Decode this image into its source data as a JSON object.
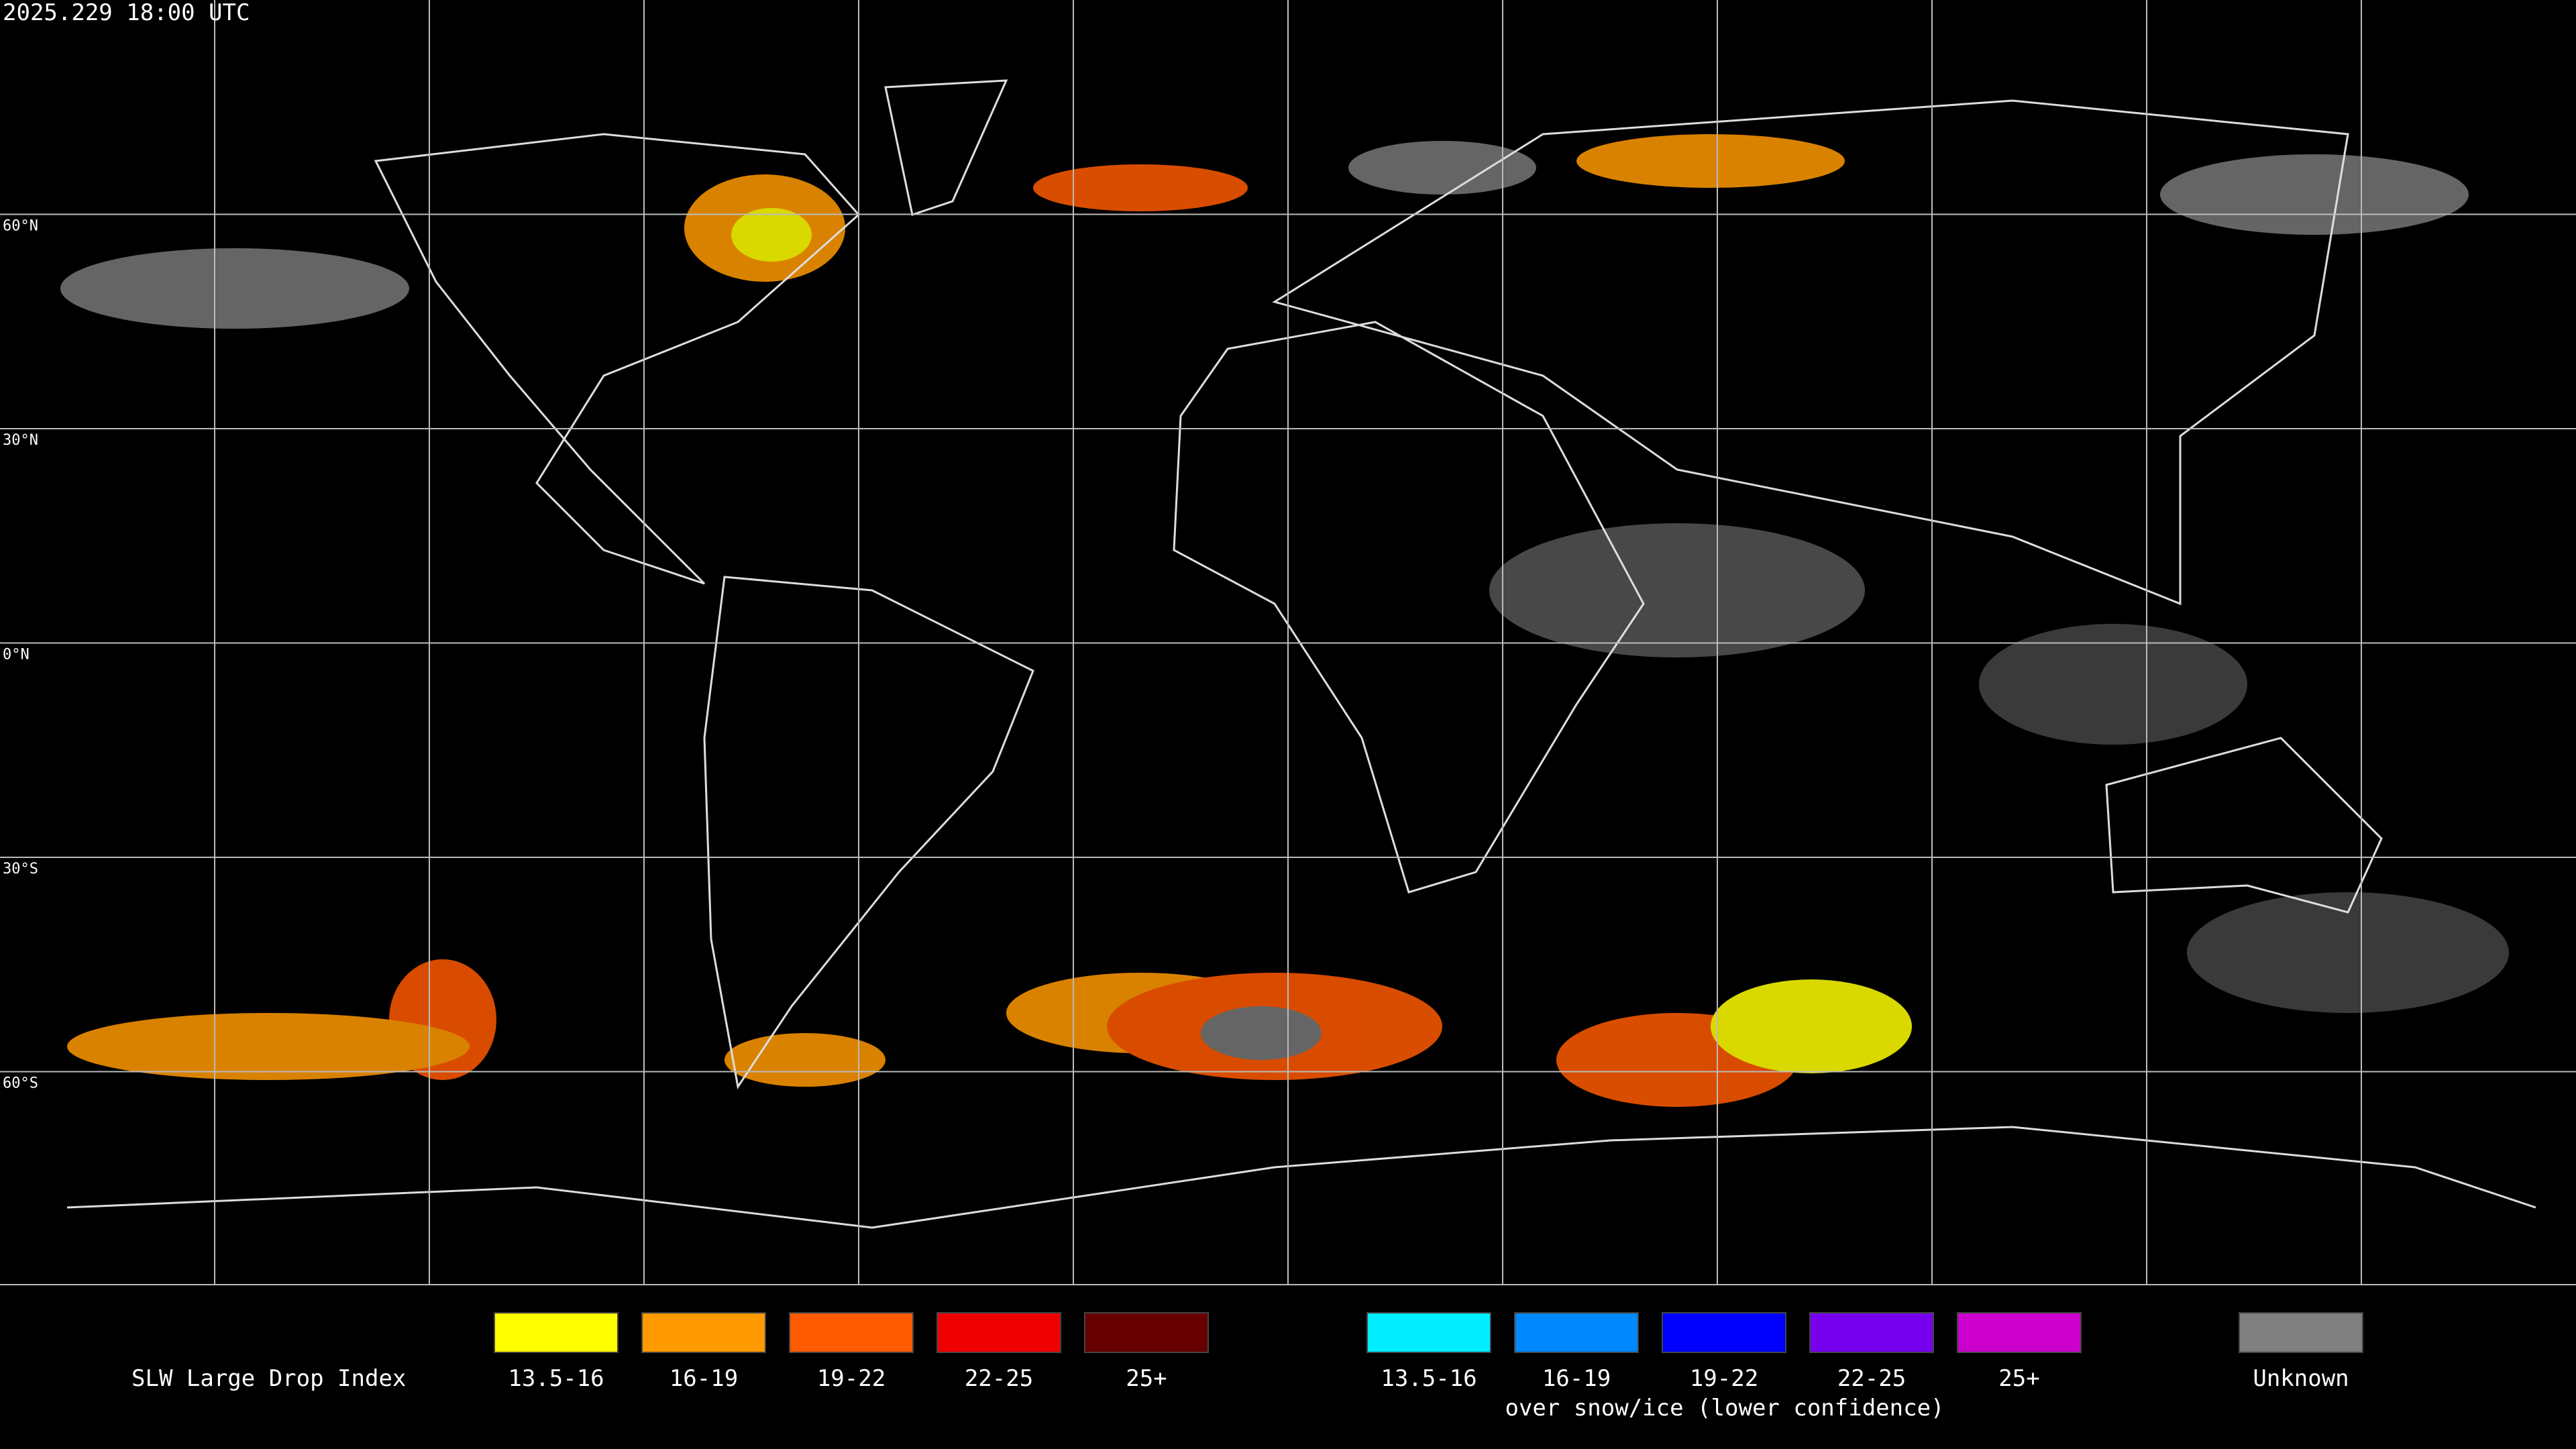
{
  "header": {
    "timestamp": "2025.229 18:00 UTC"
  },
  "map": {
    "latitude_labels": [
      "60°N",
      "30°N",
      "0°N",
      "30°S",
      "60°S"
    ]
  },
  "legend": {
    "title": "SLW Large Drop Index",
    "items": [
      {
        "label": "13.5-16",
        "color": "#ffff00"
      },
      {
        "label": "16-19",
        "color": "#ff9900"
      },
      {
        "label": "19-22",
        "color": "#ff5a00"
      },
      {
        "label": "22-25",
        "color": "#ee0000"
      },
      {
        "label": "25+",
        "color": "#660000"
      }
    ],
    "snow_ice_items": [
      {
        "label": "13.5-16",
        "color": "#00eeff"
      },
      {
        "label": "16-19",
        "color": "#0088ff"
      },
      {
        "label": "19-22",
        "color": "#0000ff"
      },
      {
        "label": "22-25",
        "color": "#7700ee"
      },
      {
        "label": "25+",
        "color": "#cc00cc"
      }
    ],
    "snow_ice_note": "over snow/ice (lower confidence)",
    "unknown": {
      "label": "Unknown",
      "color": "#808080"
    }
  }
}
